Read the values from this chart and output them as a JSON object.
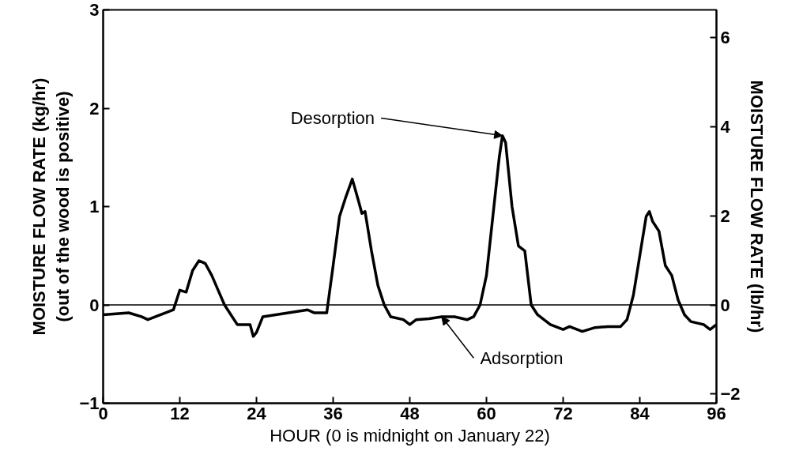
{
  "chart_data": {
    "type": "line",
    "xlabel": "HOUR (0 is midnight on January 22)",
    "ylabel": "MOISTURE FLOW RATE (kg/hr)\n(out of the wood is positive)",
    "y2label": "MOISTURE FLOW RATE (lb/hr)",
    "xlim": [
      0,
      96
    ],
    "xticks": [
      0,
      12,
      24,
      36,
      48,
      60,
      72,
      84,
      96
    ],
    "ylim": [
      -1,
      3
    ],
    "yticks": [
      -1,
      0,
      1,
      2,
      3
    ],
    "y2lim": [
      -2.2046,
      6.6139
    ],
    "y2ticks": [
      -2,
      0,
      2,
      4,
      6
    ],
    "grid": false,
    "marker": "none",
    "line_style": "solid",
    "ref_lines": [
      {
        "axis": "y",
        "value": 0,
        "color": "#000000"
      }
    ],
    "annotations": [
      {
        "text": "Desorption",
        "x": 62.5,
        "y": 1.72
      },
      {
        "text": "Adsorption",
        "x": 53,
        "y": -0.12
      }
    ],
    "series": [
      {
        "color": "#000000",
        "x": [
          0,
          2,
          4,
          6,
          7,
          9,
          11,
          12,
          13,
          14,
          15,
          16,
          17,
          18,
          19,
          20,
          21,
          22,
          23,
          23.5,
          24,
          25,
          27,
          30,
          32,
          33,
          35,
          36,
          37,
          38,
          39,
          40,
          40.5,
          41,
          42,
          43,
          44,
          45,
          47,
          48,
          49,
          51,
          53,
          55,
          57,
          58,
          59,
          60,
          61,
          62,
          62.5,
          63,
          64,
          65,
          66,
          67,
          68,
          70,
          72,
          73,
          75,
          77,
          79,
          81,
          82,
          83,
          84,
          85,
          85.5,
          86,
          87,
          88,
          89,
          90,
          91,
          92,
          94,
          95,
          96
        ],
        "values": [
          -0.1,
          -0.09,
          -0.08,
          -0.12,
          -0.15,
          -0.1,
          -0.05,
          0.15,
          0.13,
          0.35,
          0.45,
          0.42,
          0.3,
          0.15,
          0.0,
          -0.1,
          -0.2,
          -0.2,
          -0.2,
          -0.32,
          -0.28,
          -0.12,
          -0.1,
          -0.07,
          -0.05,
          -0.08,
          -0.08,
          0.4,
          0.9,
          1.1,
          1.28,
          1.05,
          0.93,
          0.95,
          0.55,
          0.2,
          0.0,
          -0.12,
          -0.15,
          -0.2,
          -0.15,
          -0.14,
          -0.12,
          -0.12,
          -0.15,
          -0.12,
          0.0,
          0.3,
          0.9,
          1.5,
          1.72,
          1.65,
          1.0,
          0.6,
          0.55,
          0.0,
          -0.1,
          -0.2,
          -0.25,
          -0.22,
          -0.27,
          -0.23,
          -0.22,
          -0.22,
          -0.15,
          0.1,
          0.5,
          0.9,
          0.95,
          0.85,
          0.75,
          0.4,
          0.3,
          0.05,
          -0.1,
          -0.17,
          -0.2,
          -0.25,
          -0.2
        ]
      }
    ]
  }
}
